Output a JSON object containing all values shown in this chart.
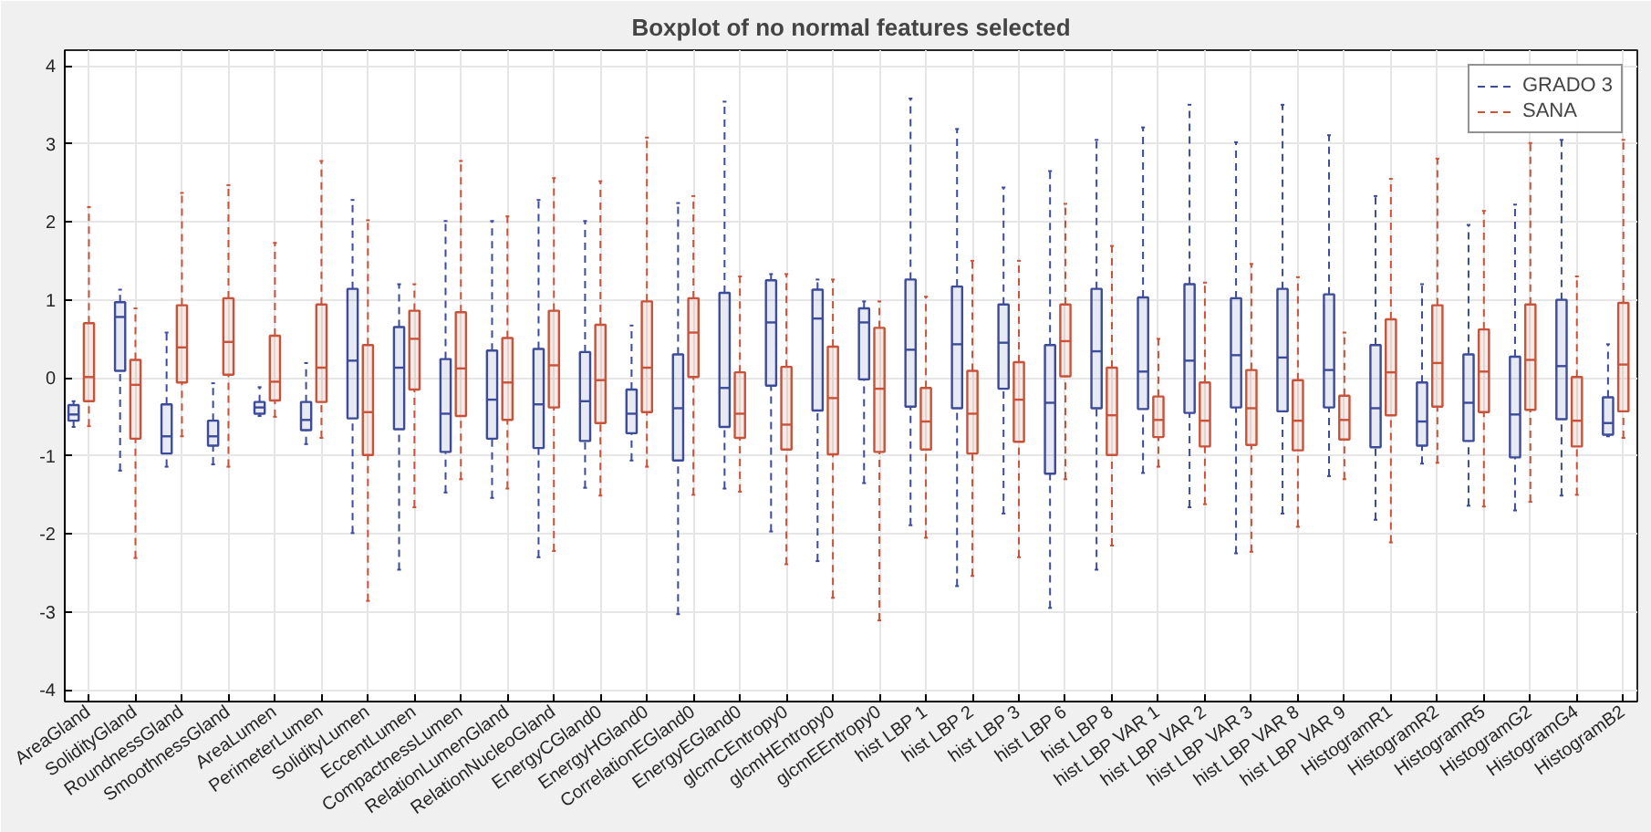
{
  "chart_data": {
    "type": "box",
    "title": "Boxplot of no normal features selected",
    "categories": [
      "AreaGland",
      "SolidityGland",
      "RoundnessGland",
      "SmoothnessGland",
      "AreaLumen",
      "PerimeterLumen",
      "SolidityLumen",
      "EccentLumen",
      "CompactnessLumen",
      "RelationLumenGland",
      "RelationNucleoGland",
      "EnergyCGland0",
      "EnergyHGland0",
      "CorrelationEGland0",
      "EnergyEGland0",
      "glcmCEntropy0",
      "glcmHEntropy0",
      "glcmEEntropy0",
      "hist LBP 1",
      "hist LBP 2",
      "hist LBP 3",
      "hist LBP 6",
      "hist LBP 8",
      "hist LBP VAR 1",
      "hist LBP VAR 2",
      "hist LBP VAR 3",
      "hist LBP VAR 8",
      "hist LBP VAR 9",
      "HistogramR1",
      "HistogramR2",
      "HistogramR5",
      "HistogramG2",
      "HistogramG4",
      "HistogramB2"
    ],
    "ylim": [
      -4.15,
      4.2
    ],
    "yticks": [
      -4,
      -3,
      -2,
      -1,
      0,
      1,
      2,
      3,
      4
    ],
    "grid": true,
    "legend": "top right",
    "series": [
      {
        "name": "GRADO 3",
        "color": "#3c4b9a",
        "boxes": [
          {
            "low": -0.63,
            "q1": -0.55,
            "median": -0.47,
            "q3": -0.35,
            "high": -0.3
          },
          {
            "low": -1.19,
            "q1": 0.09,
            "median": 0.78,
            "q3": 0.97,
            "high": 1.13
          },
          {
            "low": -1.14,
            "q1": -0.97,
            "median": -0.75,
            "q3": -0.34,
            "high": 0.58
          },
          {
            "low": -1.11,
            "q1": -0.87,
            "median": -0.75,
            "q3": -0.55,
            "high": -0.07
          },
          {
            "low": -0.49,
            "q1": -0.46,
            "median": -0.38,
            "q3": -0.31,
            "high": -0.12
          },
          {
            "low": -0.85,
            "q1": -0.67,
            "median": -0.54,
            "q3": -0.31,
            "high": 0.19
          },
          {
            "low": -1.99,
            "q1": -0.52,
            "median": 0.22,
            "q3": 1.14,
            "high": 2.28
          },
          {
            "low": -2.46,
            "q1": -0.66,
            "median": 0.13,
            "q3": 0.65,
            "high": 1.2
          },
          {
            "low": -1.47,
            "q1": -0.95,
            "median": -0.46,
            "q3": 0.24,
            "high": 2.01
          },
          {
            "low": -1.54,
            "q1": -0.78,
            "median": -0.28,
            "q3": 0.35,
            "high": 2.01
          },
          {
            "low": -2.3,
            "q1": -0.9,
            "median": -0.34,
            "q3": 0.37,
            "high": 2.28
          },
          {
            "low": -1.41,
            "q1": -0.81,
            "median": -0.3,
            "q3": 0.33,
            "high": 2.01
          },
          {
            "low": -1.06,
            "q1": -0.71,
            "median": -0.46,
            "q3": -0.15,
            "high": 0.67
          },
          {
            "low": -3.03,
            "q1": -1.06,
            "median": -0.39,
            "q3": 0.3,
            "high": 2.24
          },
          {
            "low": -1.42,
            "q1": -0.63,
            "median": -0.13,
            "q3": 1.09,
            "high": 3.54
          },
          {
            "low": -1.97,
            "q1": -0.1,
            "median": 0.71,
            "q3": 1.25,
            "high": 1.33
          },
          {
            "low": -2.35,
            "q1": -0.42,
            "median": 0.76,
            "q3": 1.13,
            "high": 1.26
          },
          {
            "low": -1.35,
            "q1": -0.02,
            "median": 0.71,
            "q3": 0.89,
            "high": 0.98
          },
          {
            "low": -1.89,
            "q1": -0.37,
            "median": 0.36,
            "q3": 1.26,
            "high": 3.58
          },
          {
            "low": -2.67,
            "q1": -0.39,
            "median": 0.43,
            "q3": 1.17,
            "high": 3.19
          },
          {
            "low": -1.74,
            "q1": -0.14,
            "median": 0.45,
            "q3": 0.94,
            "high": 2.44
          },
          {
            "low": -2.95,
            "q1": -1.23,
            "median": -0.32,
            "q3": 0.42,
            "high": 2.65
          },
          {
            "low": -2.46,
            "q1": -0.39,
            "median": 0.34,
            "q3": 1.14,
            "high": 3.05
          },
          {
            "low": -1.22,
            "q1": -0.4,
            "median": 0.08,
            "q3": 1.03,
            "high": 3.21
          },
          {
            "low": -1.66,
            "q1": -0.45,
            "median": 0.22,
            "q3": 1.2,
            "high": 3.5
          },
          {
            "low": -2.25,
            "q1": -0.38,
            "median": 0.29,
            "q3": 1.02,
            "high": 3.02
          },
          {
            "low": -1.74,
            "q1": -0.43,
            "median": 0.26,
            "q3": 1.14,
            "high": 3.5
          },
          {
            "low": -1.26,
            "q1": -0.38,
            "median": 0.1,
            "q3": 1.07,
            "high": 3.11
          },
          {
            "low": -1.82,
            "q1": -0.89,
            "median": -0.39,
            "q3": 0.42,
            "high": 2.33
          },
          {
            "low": -1.1,
            "q1": -0.87,
            "median": -0.56,
            "q3": -0.06,
            "high": 1.2
          },
          {
            "low": -1.64,
            "q1": -0.81,
            "median": -0.32,
            "q3": 0.3,
            "high": 1.96
          },
          {
            "low": -1.7,
            "q1": -1.02,
            "median": -0.47,
            "q3": 0.27,
            "high": 2.22
          },
          {
            "low": -1.51,
            "q1": -0.53,
            "median": 0.15,
            "q3": 1.0,
            "high": 3.05
          },
          {
            "low": -0.75,
            "q1": -0.73,
            "median": -0.58,
            "q3": -0.25,
            "high": 0.43
          }
        ]
      },
      {
        "name": "SANA",
        "color": "#c8533a",
        "boxes": [
          {
            "low": -0.62,
            "q1": -0.3,
            "median": 0.01,
            "q3": 0.7,
            "high": 2.19
          },
          {
            "low": -2.31,
            "q1": -0.78,
            "median": -0.09,
            "q3": 0.23,
            "high": 0.89
          },
          {
            "low": -0.75,
            "q1": -0.06,
            "median": 0.39,
            "q3": 0.93,
            "high": 2.37
          },
          {
            "low": -1.14,
            "q1": 0.04,
            "median": 0.46,
            "q3": 1.02,
            "high": 2.47
          },
          {
            "low": -0.5,
            "q1": -0.29,
            "median": -0.05,
            "q3": 0.54,
            "high": 1.73
          },
          {
            "low": -0.77,
            "q1": -0.31,
            "median": 0.13,
            "q3": 0.94,
            "high": 2.78
          },
          {
            "low": -2.86,
            "q1": -0.99,
            "median": -0.44,
            "q3": 0.42,
            "high": 2.02
          },
          {
            "low": -1.66,
            "q1": -0.15,
            "median": 0.5,
            "q3": 0.86,
            "high": 1.2
          },
          {
            "low": -1.3,
            "q1": -0.49,
            "median": 0.12,
            "q3": 0.84,
            "high": 2.78
          },
          {
            "low": -1.42,
            "q1": -0.54,
            "median": -0.06,
            "q3": 0.51,
            "high": 2.07
          },
          {
            "low": -2.22,
            "q1": -0.38,
            "median": 0.16,
            "q3": 0.86,
            "high": 2.56
          },
          {
            "low": -1.51,
            "q1": -0.58,
            "median": -0.03,
            "q3": 0.68,
            "high": 2.52
          },
          {
            "low": -1.14,
            "q1": -0.44,
            "median": 0.13,
            "q3": 0.98,
            "high": 3.08
          },
          {
            "low": -1.5,
            "q1": 0.01,
            "median": 0.58,
            "q3": 1.02,
            "high": 2.33
          },
          {
            "low": -1.46,
            "q1": -0.77,
            "median": -0.46,
            "q3": 0.07,
            "high": 1.3
          },
          {
            "low": -2.39,
            "q1": -0.92,
            "median": -0.6,
            "q3": 0.14,
            "high": 1.33
          },
          {
            "low": -2.82,
            "q1": -0.98,
            "median": -0.26,
            "q3": 0.4,
            "high": 1.26
          },
          {
            "low": -3.11,
            "q1": -0.95,
            "median": -0.14,
            "q3": 0.64,
            "high": 0.98
          },
          {
            "low": -2.05,
            "q1": -0.92,
            "median": -0.56,
            "q3": -0.13,
            "high": 1.04
          },
          {
            "low": -2.54,
            "q1": -0.97,
            "median": -0.46,
            "q3": 0.09,
            "high": 1.5
          },
          {
            "low": -2.3,
            "q1": -0.82,
            "median": -0.28,
            "q3": 0.2,
            "high": 1.5
          },
          {
            "low": -1.3,
            "q1": 0.02,
            "median": 0.47,
            "q3": 0.94,
            "high": 2.23
          },
          {
            "low": -2.15,
            "q1": -0.99,
            "median": -0.48,
            "q3": 0.13,
            "high": 1.69
          },
          {
            "low": -1.14,
            "q1": -0.76,
            "median": -0.54,
            "q3": -0.24,
            "high": 0.5
          },
          {
            "low": -1.62,
            "q1": -0.88,
            "median": -0.55,
            "q3": -0.06,
            "high": 1.22
          },
          {
            "low": -2.23,
            "q1": -0.86,
            "median": -0.39,
            "q3": 0.1,
            "high": 1.46
          },
          {
            "low": -1.91,
            "q1": -0.93,
            "median": -0.55,
            "q3": -0.03,
            "high": 1.29
          },
          {
            "low": -1.3,
            "q1": -0.79,
            "median": -0.54,
            "q3": -0.23,
            "high": 0.58
          },
          {
            "low": -2.11,
            "q1": -0.48,
            "median": 0.07,
            "q3": 0.75,
            "high": 2.55
          },
          {
            "low": -1.09,
            "q1": -0.37,
            "median": 0.19,
            "q3": 0.93,
            "high": 2.81
          },
          {
            "low": -1.65,
            "q1": -0.44,
            "median": 0.08,
            "q3": 0.62,
            "high": 2.14
          },
          {
            "low": -1.59,
            "q1": -0.41,
            "median": 0.23,
            "q3": 0.94,
            "high": 3.01
          },
          {
            "low": -1.5,
            "q1": -0.88,
            "median": -0.55,
            "q3": 0.01,
            "high": 1.3
          },
          {
            "low": -0.77,
            "q1": -0.43,
            "median": 0.17,
            "q3": 0.96,
            "high": 3.05
          }
        ]
      }
    ]
  }
}
